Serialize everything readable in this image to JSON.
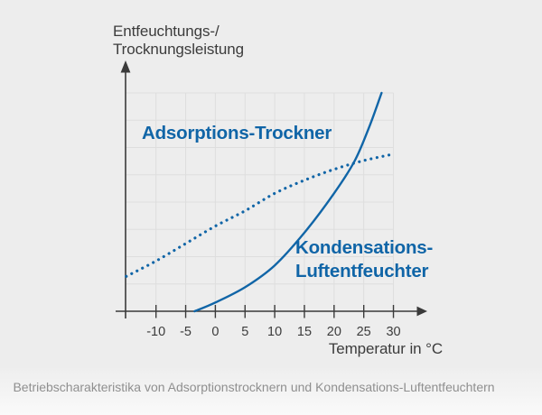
{
  "figure": {
    "background": "#ededed",
    "caption": "Betriebscharakteristika von Adsorptionstrocknern und Kondensations-Luftentfeuchtern"
  },
  "axes": {
    "y_title_line1": "Entfeuchtungs-/",
    "y_title_line2": "Trocknungsleistung",
    "x_title": "Temperatur in °C"
  },
  "labels": {
    "adsorption": "Adsorptions-Trockner",
    "condensation_line1": "Kondensations-",
    "condensation_line2": "Luftentfeuchter"
  },
  "colors": {
    "curve_blue": "#1065a7",
    "axis": "#3a3a3a",
    "axis_text": "#3c3c3c",
    "grid": "#dedede",
    "caption_text": "#8f8f8f"
  },
  "chart_data": {
    "type": "line",
    "title": "",
    "xlabel": "Temperatur in °C",
    "ylabel": "Entfeuchtungs-/Trocknungsleistung",
    "x_ticks": [
      -10,
      -5,
      0,
      5,
      10,
      15,
      20,
      25,
      30
    ],
    "x_range": [
      -15,
      30
    ],
    "y_range_relative": [
      0,
      100
    ],
    "grid": true,
    "legend_position": "inline-annotations",
    "series": [
      {
        "name": "Adsorptions-Trockner",
        "style": "dotted",
        "color": "#1065a7",
        "points": [
          [
            -15,
            16
          ],
          [
            -10,
            23
          ],
          [
            -5,
            31
          ],
          [
            0,
            39
          ],
          [
            5,
            46
          ],
          [
            10,
            54
          ],
          [
            15,
            60
          ],
          [
            20,
            65
          ],
          [
            25,
            69
          ],
          [
            30,
            72
          ]
        ]
      },
      {
        "name": "Kondensations-Luftentfeuchter",
        "style": "solid",
        "color": "#1065a7",
        "points": [
          [
            -3.5,
            0
          ],
          [
            0,
            4
          ],
          [
            5,
            11
          ],
          [
            10,
            21
          ],
          [
            15,
            36
          ],
          [
            20,
            54
          ],
          [
            23.5,
            69
          ],
          [
            26,
            85
          ],
          [
            28,
            100
          ]
        ]
      }
    ]
  }
}
